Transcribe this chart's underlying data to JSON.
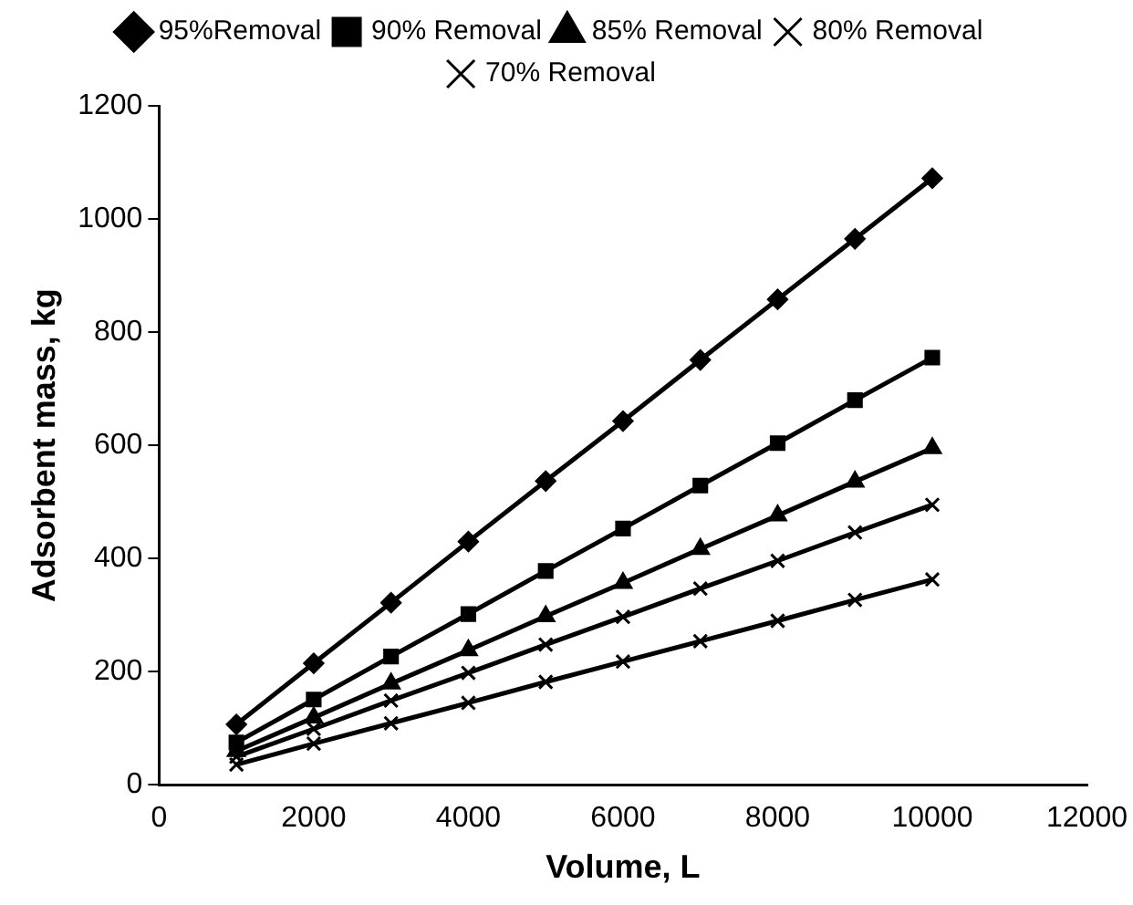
{
  "chart_data": {
    "type": "line",
    "xlabel": "Volume, L",
    "ylabel": "Adsorbent mass, kg",
    "x": [
      1000,
      2000,
      3000,
      4000,
      5000,
      6000,
      7000,
      8000,
      9000,
      10000
    ],
    "xlim": [
      0,
      12000
    ],
    "xticks": [
      0,
      2000,
      4000,
      6000,
      8000,
      10000,
      12000
    ],
    "ylim": [
      0,
      1200
    ],
    "yticks": [
      0,
      200,
      400,
      600,
      800,
      1000,
      1200
    ],
    "grid": false,
    "legend": "top",
    "line_style": "solid",
    "series": [
      {
        "name": "95%Removal",
        "color": "#000000",
        "marker": "diamond",
        "values": [
          107,
          215,
          322,
          430,
          537,
          643,
          751,
          858,
          965,
          1072
        ]
      },
      {
        "name": "90% Removal",
        "color": "#000000",
        "marker": "square",
        "values": [
          75,
          151,
          227,
          302,
          378,
          453,
          529,
          604,
          680,
          755
        ]
      },
      {
        "name": "85% Removal",
        "color": "#000000",
        "marker": "triangle",
        "values": [
          60,
          119,
          179,
          238,
          298,
          357,
          417,
          476,
          536,
          595
        ]
      },
      {
        "name": "80% Removal",
        "color": "#000000",
        "marker": "cross",
        "values": [
          50,
          99,
          149,
          198,
          248,
          297,
          347,
          396,
          446,
          495
        ]
      },
      {
        "name": "70% Removal",
        "color": "#000000",
        "marker": "cross",
        "values": [
          36,
          73,
          109,
          145,
          182,
          218,
          254,
          290,
          327,
          363
        ]
      }
    ]
  }
}
